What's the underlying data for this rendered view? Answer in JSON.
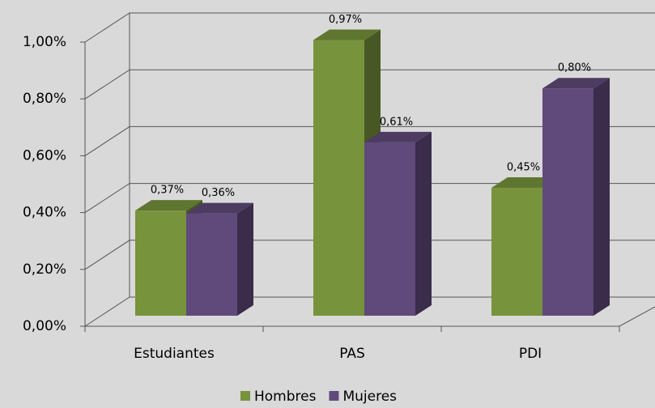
{
  "chart_data": {
    "type": "bar3d",
    "categories": [
      "Estudiantes",
      "PAS",
      "PDI"
    ],
    "series": [
      {
        "name": "Hombres",
        "color": "#77933c",
        "values": [
          0.37,
          0.97,
          0.45
        ],
        "value_labels": [
          "0,37%",
          "0,97%",
          "0,45%"
        ]
      },
      {
        "name": "Mujeres",
        "color": "#604a7b",
        "values": [
          0.36,
          0.61,
          0.8
        ],
        "value_labels": [
          "0,36%",
          "0,61%",
          "0,80%"
        ]
      }
    ],
    "ylim": [
      0,
      1
    ],
    "yticks": [
      {
        "value": 0,
        "label": "0,00%"
      },
      {
        "value": 0.2,
        "label": "0,20%"
      },
      {
        "value": 0.4,
        "label": "0,40%"
      },
      {
        "value": 0.6,
        "label": "0,60%"
      },
      {
        "value": 0.8,
        "label": "0,80%"
      },
      {
        "value": 1,
        "label": "1,00%"
      }
    ],
    "grid": true,
    "legend": "bottom"
  }
}
